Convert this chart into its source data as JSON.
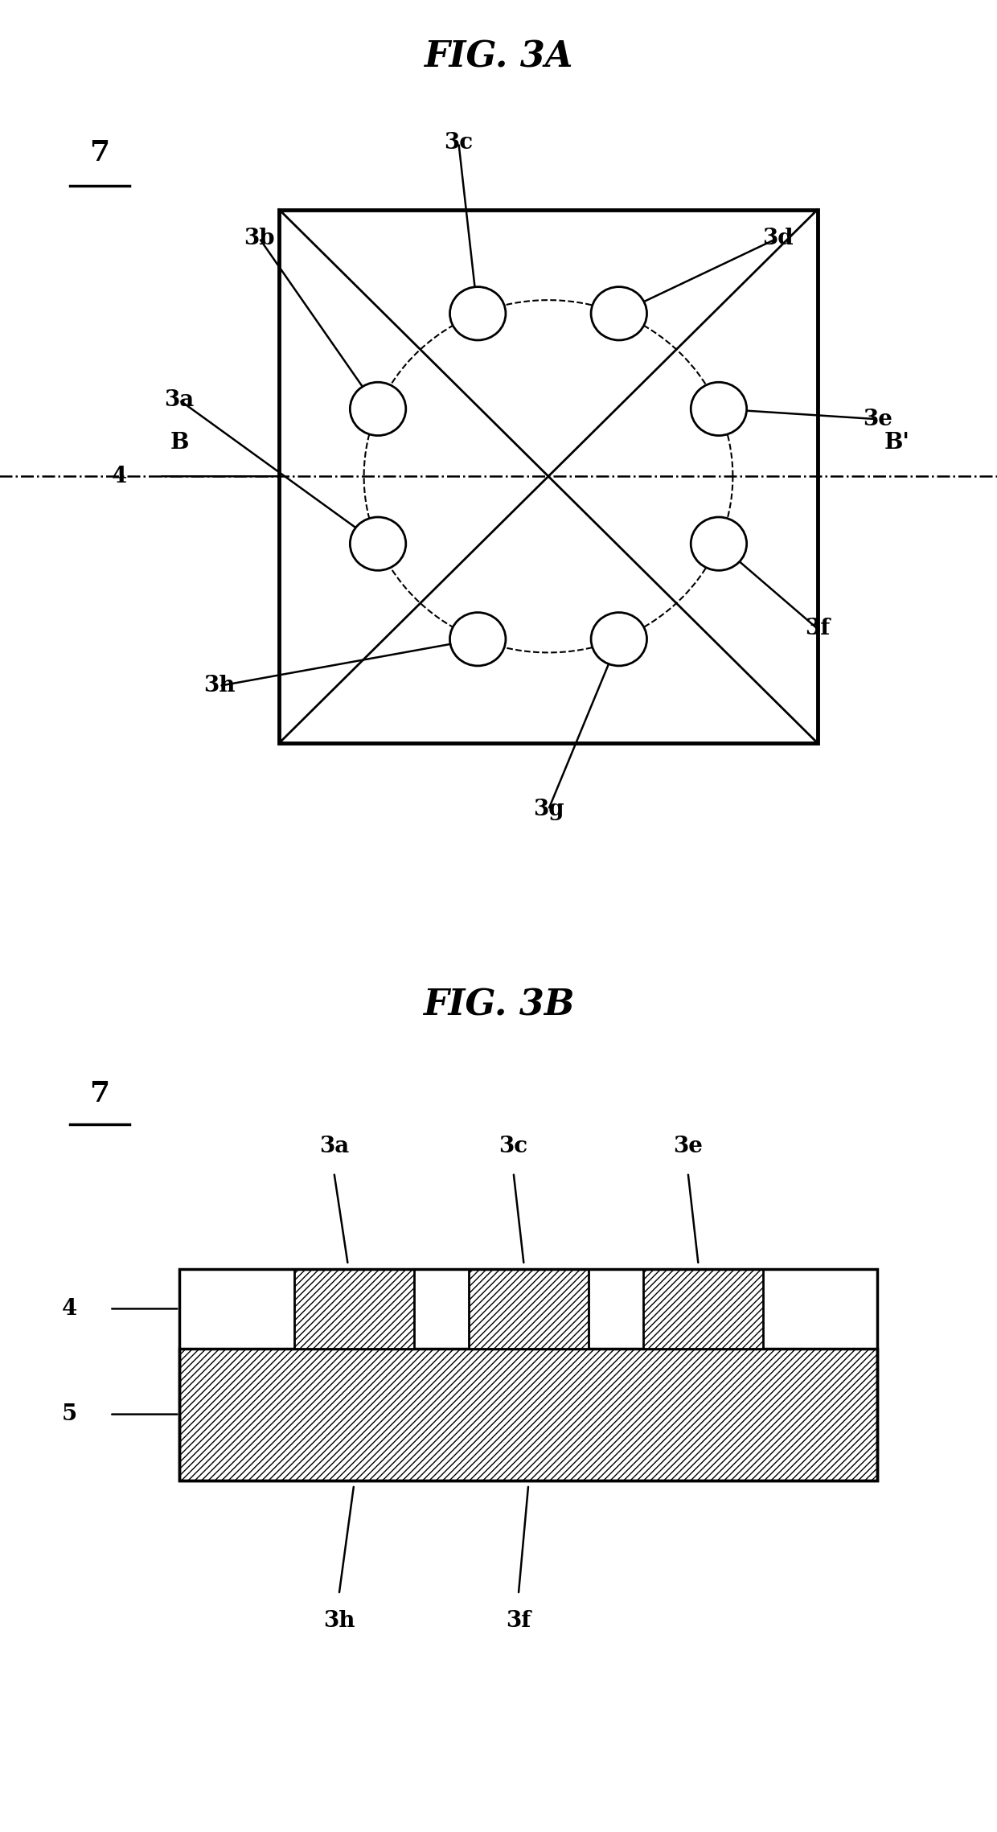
{
  "fig3a_title": "FIG. 3A",
  "fig3b_title": "FIG. 3B",
  "bg_color": "#ffffff",
  "electrode_angles_deg": [
    157.5,
    112.5,
    67.5,
    22.5,
    337.5,
    292.5,
    247.5,
    202.5
  ],
  "electrode_names": [
    "3b",
    "3c",
    "3d",
    "3e",
    "3f",
    "3g",
    "3h",
    "3a"
  ]
}
